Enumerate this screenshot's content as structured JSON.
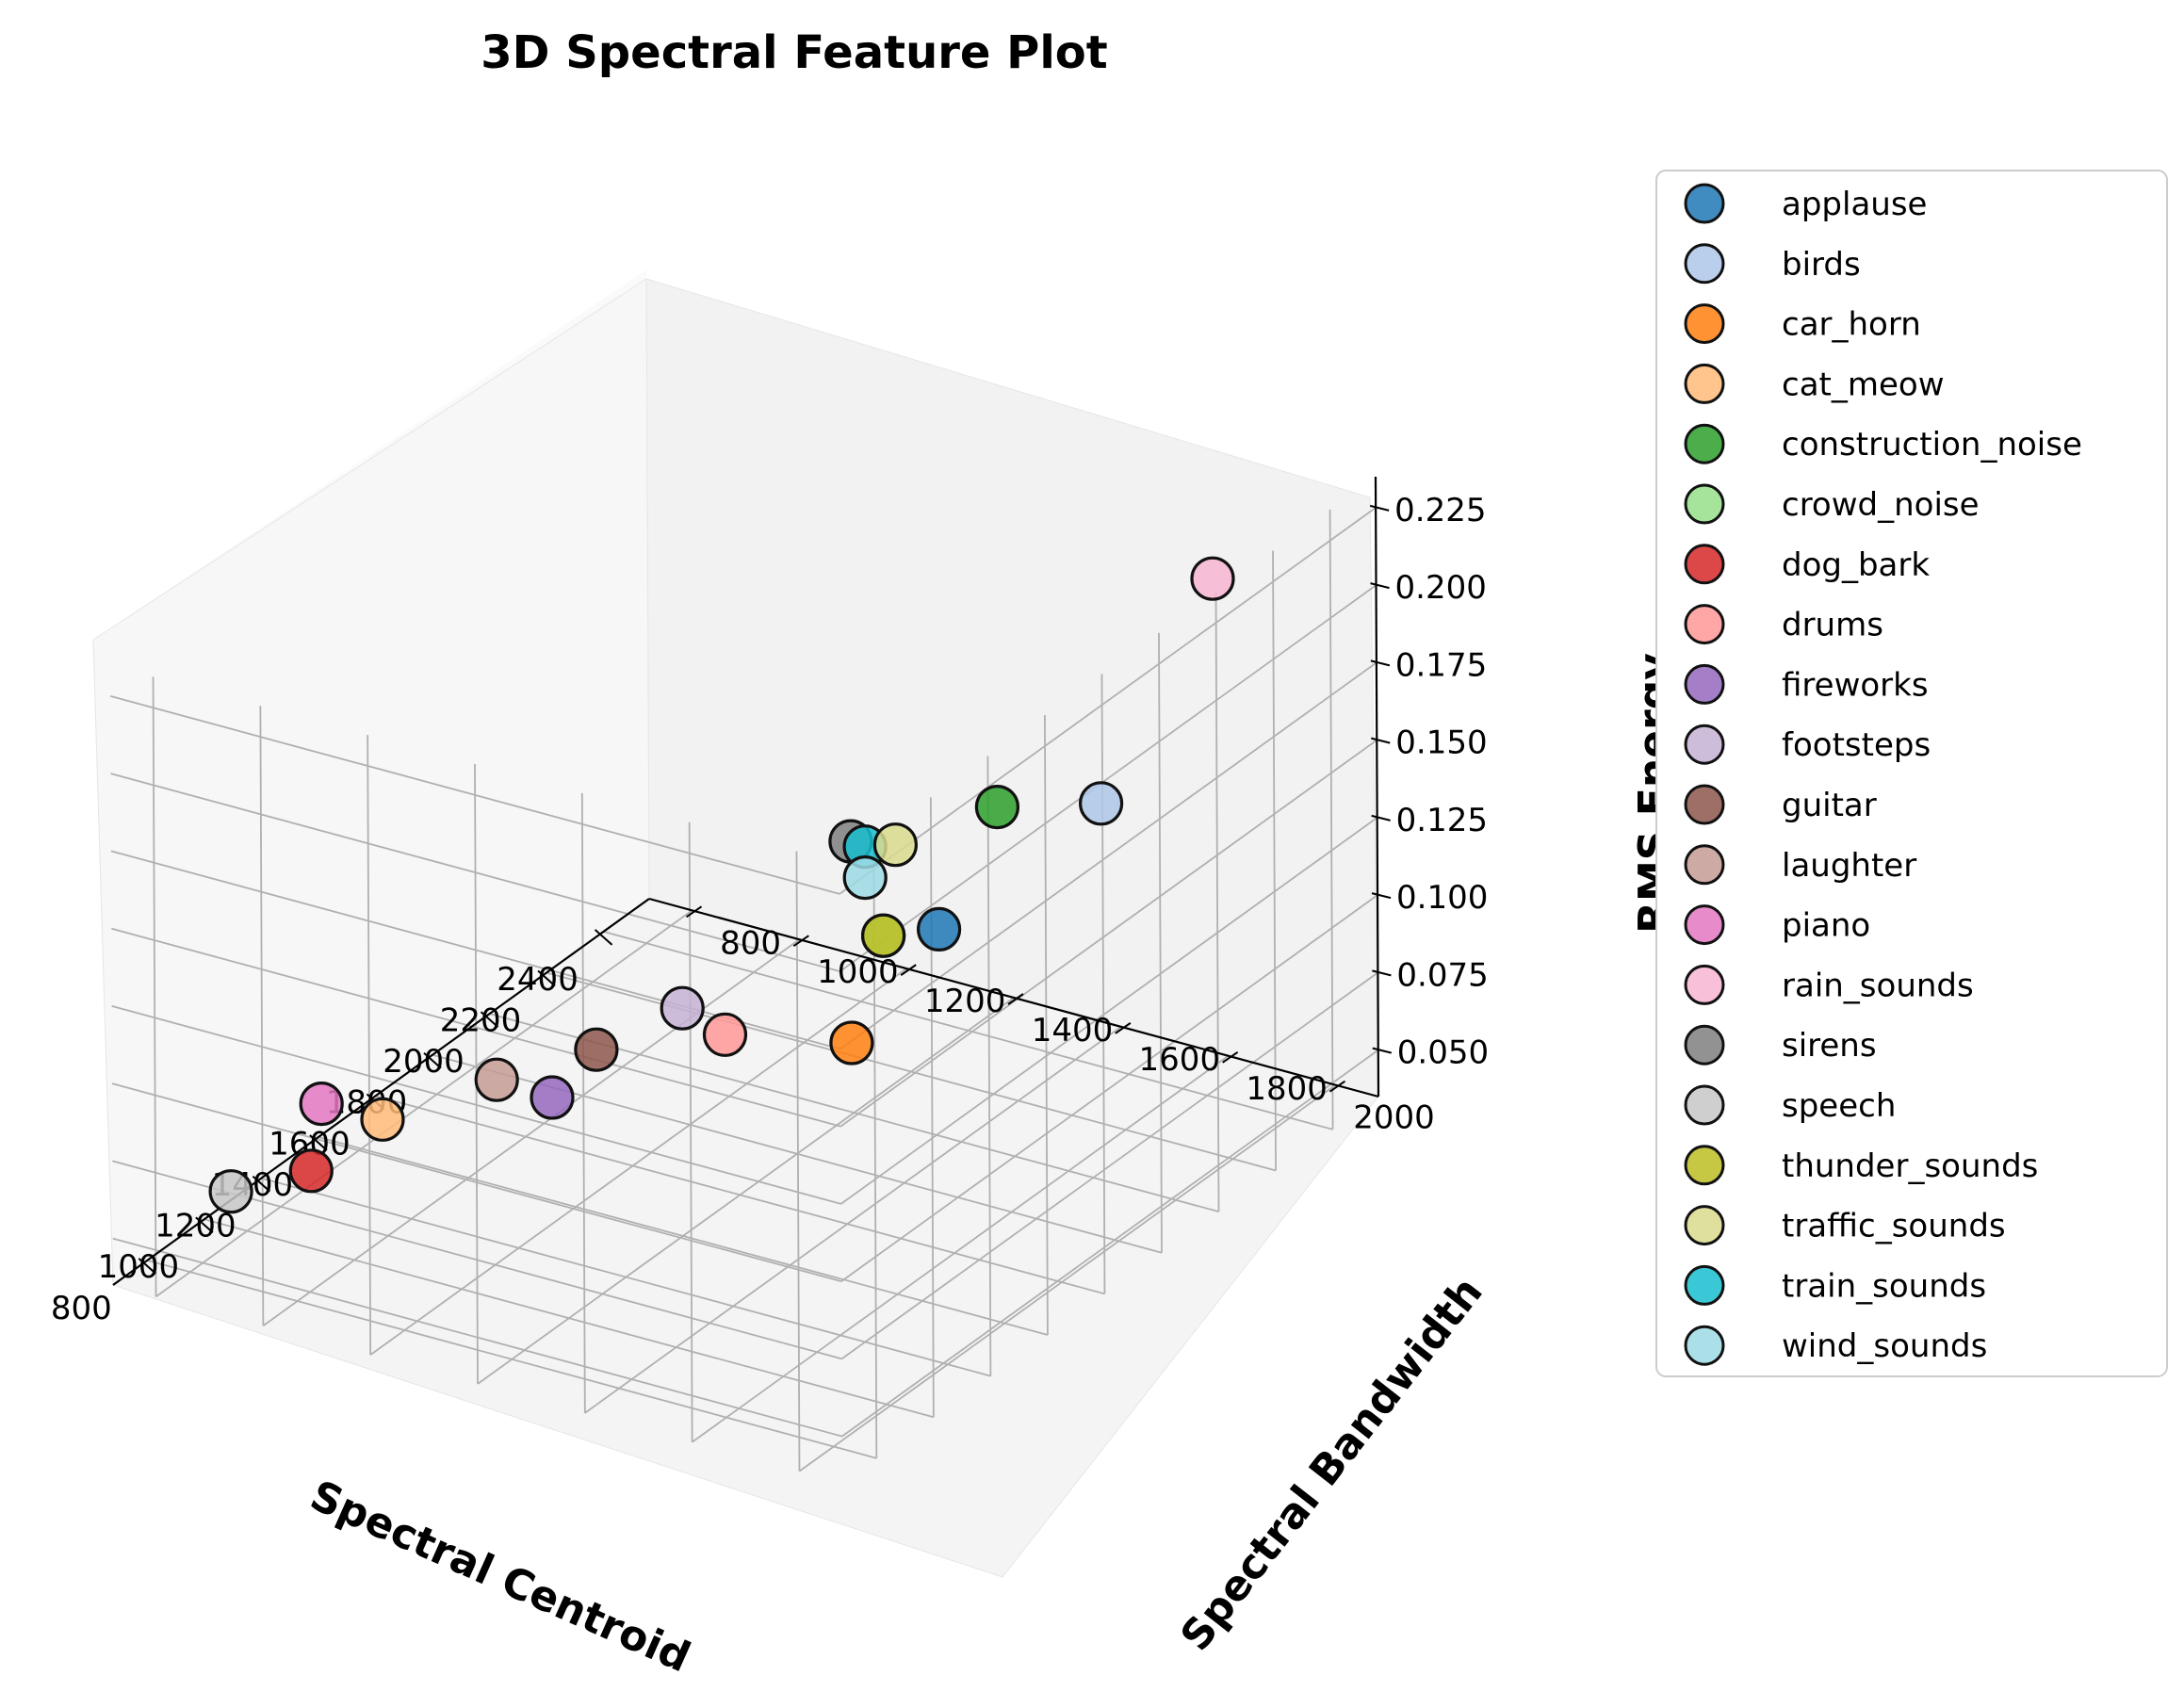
{
  "chart_data": {
    "type": "scatter",
    "title": "3D Spectral Feature Plot",
    "xlabel": "Spectral Centroid",
    "ylabel": "Spectral Bandwidth",
    "zlabel": "RMS Energy",
    "xticks": [
      "800",
      "1000",
      "1200",
      "1400",
      "1600",
      "1800",
      "2000",
      "2200",
      "2400"
    ],
    "yticks": [
      "800",
      "1000",
      "1200",
      "1400",
      "1600",
      "1800",
      "2000"
    ],
    "zticks": [
      "0.050",
      "0.075",
      "0.100",
      "0.125",
      "0.150",
      "0.175",
      "0.200",
      "0.225"
    ],
    "legend_position": "right",
    "grid": true,
    "series": [
      {
        "name": "applause",
        "color": "#1f77b4",
        "x": 2150,
        "y": 1480,
        "z": 0.088
      },
      {
        "name": "birds",
        "color": "#aec7e8",
        "x": 2400,
        "y": 1650,
        "z": 0.12
      },
      {
        "name": "car_horn",
        "color": "#ff7f0e",
        "x": 1150,
        "y": 1850,
        "z": 0.135
      },
      {
        "name": "cat_meow",
        "color": "#ffbb78",
        "x": 1250,
        "y": 920,
        "z": 0.06
      },
      {
        "name": "construction_noise",
        "color": "#2ca02c",
        "x": 1850,
        "y": 1750,
        "z": 0.16
      },
      {
        "name": "crowd_noise",
        "color": "#98df8a",
        "x": 1450,
        "y": 1750,
        "z": 0.145
      },
      {
        "name": "dog_bark",
        "color": "#d62728",
        "x": 1000,
        "y": 920,
        "z": 0.06
      },
      {
        "name": "drums",
        "color": "#ff9896",
        "x": 1550,
        "y": 1400,
        "z": 0.09
      },
      {
        "name": "fireworks",
        "color": "#9467bd",
        "x": 1600,
        "y": 1050,
        "z": 0.05
      },
      {
        "name": "footsteps",
        "color": "#c5b0d5",
        "x": 2150,
        "y": 1000,
        "z": 0.04
      },
      {
        "name": "guitar",
        "color": "#8c564b",
        "x": 1100,
        "y": 1400,
        "z": 0.115
      },
      {
        "name": "laughter",
        "color": "#c49c94",
        "x": 1500,
        "y": 1000,
        "z": 0.06
      },
      {
        "name": "piano",
        "color": "#e377c2",
        "x": 700,
        "y": 1100,
        "z": 0.11
      },
      {
        "name": "rain_sounds",
        "color": "#f7b6d2",
        "x": 2700,
        "y": 1700,
        "z": 0.175
      },
      {
        "name": "sirens",
        "color": "#7f7f7f",
        "x": 1150,
        "y": 1850,
        "z": 0.2
      },
      {
        "name": "speech",
        "color": "#c7c7c7",
        "x": 850,
        "y": 850,
        "z": 0.06
      },
      {
        "name": "thunder_sounds",
        "color": "#bcbd22",
        "x": 1450,
        "y": 1750,
        "z": 0.145
      },
      {
        "name": "traffic_sounds",
        "color": "#dbdb8d",
        "x": 1400,
        "y": 1800,
        "z": 0.18
      },
      {
        "name": "train_sounds",
        "color": "#17becf",
        "x": 1200,
        "y": 1850,
        "z": 0.195
      },
      {
        "name": "wind_sounds",
        "color": "#9edae5",
        "x": 1200,
        "y": 1850,
        "z": 0.185
      }
    ]
  }
}
